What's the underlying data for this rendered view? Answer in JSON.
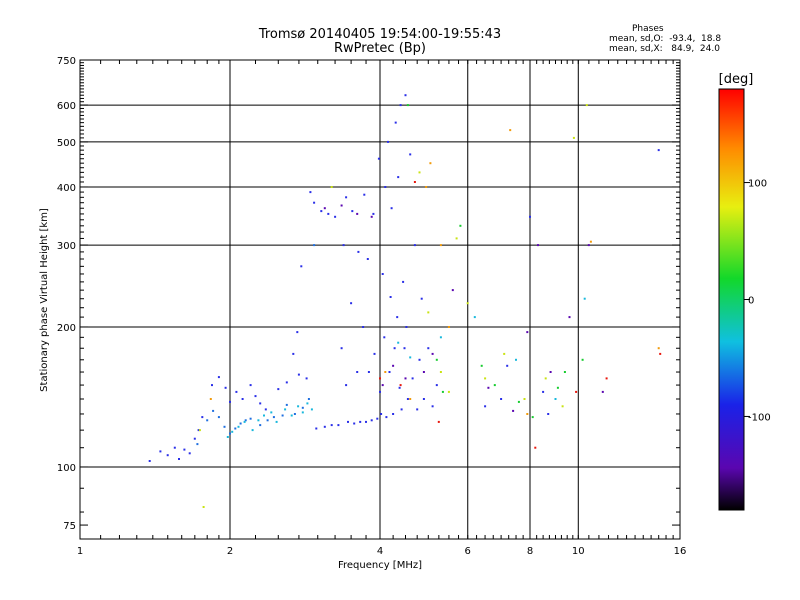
{
  "header": {
    "title_line1": "Tromsø 20140405 19:54:00-19:55:43",
    "title_line2": "RwPretec (Bp)",
    "stats_title": "Phases",
    "stats_o": "mean, sd,O:  -93.4,  18.8",
    "stats_x": "mean, sd,X:   84.9,  24.0"
  },
  "chart_data": {
    "type": "scatter",
    "title": "Tromsø 20140405 19:54:00-19:55:43",
    "subtitle": "RwPretec (Bp)",
    "xlabel": "Frequency [MHz]",
    "ylabel": "Stationary phase Virtual Height [km]",
    "x_scale": "log",
    "y_scale": "log",
    "xlim": [
      1,
      16
    ],
    "ylim": [
      70,
      750
    ],
    "x_ticks": [
      1,
      2,
      4,
      6,
      8,
      10,
      16
    ],
    "x_tick_labels": [
      "1",
      "2",
      "4",
      "6",
      "8",
      "10",
      "16"
    ],
    "x_gridlines": [
      2,
      4,
      6,
      8,
      10
    ],
    "y_ticks": [
      75,
      100,
      200,
      300,
      400,
      500,
      600,
      750
    ],
    "y_tick_labels": [
      "75",
      "100",
      "200",
      "300",
      "400",
      "500",
      "600",
      "750"
    ],
    "y_gridlines": [
      100,
      200,
      300,
      400,
      500,
      600
    ],
    "grid": true,
    "colorbar": {
      "label": "[deg]",
      "range": [
        -180,
        180
      ],
      "ticks": [
        100,
        0,
        -100
      ],
      "tick_labels": [
        "100",
        "0",
        "-100"
      ]
    },
    "series": [
      {
        "color": "#2a2fe8",
        "points": [
          [
            1.38,
            103
          ],
          [
            1.45,
            108
          ],
          [
            1.5,
            106
          ],
          [
            1.55,
            110
          ],
          [
            1.58,
            104
          ],
          [
            1.62,
            109
          ],
          [
            1.66,
            107
          ],
          [
            1.7,
            115
          ],
          [
            1.73,
            120
          ],
          [
            1.76,
            128
          ],
          [
            1.84,
            150
          ],
          [
            1.9,
            156
          ],
          [
            1.96,
            148
          ],
          [
            2.0,
            138
          ],
          [
            2.06,
            145
          ],
          [
            2.12,
            140
          ],
          [
            2.2,
            150
          ],
          [
            2.25,
            142
          ],
          [
            2.3,
            137
          ],
          [
            2.36,
            133
          ],
          [
            2.5,
            147
          ],
          [
            2.6,
            152
          ],
          [
            2.75,
            158
          ],
          [
            2.68,
            175
          ],
          [
            2.73,
            195
          ],
          [
            2.78,
            270
          ],
          [
            2.85,
            155
          ],
          [
            2.9,
            390
          ],
          [
            2.95,
            370
          ],
          [
            2.98,
            121
          ],
          [
            3.05,
            355
          ],
          [
            3.1,
            122
          ],
          [
            3.15,
            350
          ],
          [
            3.2,
            123
          ],
          [
            3.25,
            345
          ],
          [
            3.3,
            123
          ],
          [
            3.35,
            180
          ],
          [
            3.38,
            300
          ],
          [
            3.42,
            150
          ],
          [
            3.42,
            380
          ],
          [
            3.45,
            125
          ],
          [
            3.5,
            225
          ],
          [
            3.52,
            355
          ],
          [
            3.55,
            124
          ],
          [
            3.6,
            160
          ],
          [
            3.62,
            290
          ],
          [
            3.65,
            125
          ],
          [
            3.7,
            200
          ],
          [
            3.72,
            385
          ],
          [
            3.75,
            125
          ],
          [
            3.78,
            280
          ],
          [
            3.8,
            160
          ],
          [
            3.85,
            126
          ],
          [
            3.88,
            350
          ],
          [
            3.9,
            175
          ],
          [
            3.95,
            127
          ],
          [
            3.98,
            460
          ],
          [
            4.0,
            145
          ],
          [
            4.02,
            130
          ],
          [
            4.05,
            260
          ],
          [
            4.08,
            190
          ],
          [
            4.1,
            400
          ],
          [
            4.12,
            128
          ],
          [
            4.15,
            500
          ],
          [
            4.18,
            160
          ],
          [
            4.2,
            232
          ],
          [
            4.22,
            360
          ],
          [
            4.25,
            130
          ],
          [
            4.28,
            180
          ],
          [
            4.3,
            550
          ],
          [
            4.33,
            210
          ],
          [
            4.35,
            420
          ],
          [
            4.38,
            148
          ],
          [
            4.4,
            600
          ],
          [
            4.42,
            133
          ],
          [
            4.45,
            250
          ],
          [
            4.48,
            180
          ],
          [
            4.5,
            630
          ],
          [
            4.52,
            200
          ],
          [
            4.55,
            140
          ],
          [
            4.6,
            470
          ],
          [
            4.65,
            155
          ],
          [
            4.7,
            300
          ],
          [
            4.75,
            133
          ],
          [
            4.8,
            170
          ],
          [
            4.85,
            230
          ],
          [
            4.9,
            140
          ],
          [
            5.0,
            180
          ],
          [
            5.1,
            135
          ],
          [
            5.2,
            150
          ],
          [
            6.5,
            135
          ],
          [
            7.0,
            140
          ],
          [
            7.2,
            165
          ],
          [
            8.0,
            345
          ],
          [
            8.5,
            145
          ],
          [
            8.7,
            130
          ],
          [
            14.5,
            480
          ]
        ]
      },
      {
        "color": "#1f6fe0",
        "points": [
          [
            1.72,
            112
          ],
          [
            1.8,
            126
          ],
          [
            1.85,
            132
          ],
          [
            1.9,
            128
          ],
          [
            1.95,
            122
          ],
          [
            2.0,
            118
          ],
          [
            2.05,
            121
          ],
          [
            2.1,
            124
          ],
          [
            2.15,
            126
          ],
          [
            2.2,
            127
          ],
          [
            2.3,
            123
          ],
          [
            2.38,
            126
          ],
          [
            2.45,
            128
          ],
          [
            2.55,
            129
          ],
          [
            2.6,
            136
          ],
          [
            2.7,
            130
          ],
          [
            2.8,
            134
          ],
          [
            2.88,
            140
          ],
          [
            2.95,
            300
          ]
        ]
      },
      {
        "color": "#18b8dc",
        "points": [
          [
            1.98,
            116
          ],
          [
            2.02,
            119
          ],
          [
            2.08,
            122
          ],
          [
            2.14,
            125
          ],
          [
            2.22,
            120
          ],
          [
            2.28,
            126
          ],
          [
            2.34,
            129
          ],
          [
            2.42,
            131
          ],
          [
            2.48,
            125
          ],
          [
            2.58,
            133
          ],
          [
            2.66,
            129
          ],
          [
            2.74,
            135
          ],
          [
            2.8,
            131
          ],
          [
            2.86,
            137
          ],
          [
            2.92,
            133
          ],
          [
            4.35,
            185
          ],
          [
            4.6,
            172
          ],
          [
            5.3,
            190
          ],
          [
            6.2,
            210
          ],
          [
            7.5,
            170
          ],
          [
            9.0,
            140
          ],
          [
            10.3,
            230
          ]
        ]
      },
      {
        "color": "#5a06b0",
        "points": [
          [
            3.1,
            360
          ],
          [
            3.35,
            365
          ],
          [
            3.6,
            350
          ],
          [
            3.85,
            345
          ],
          [
            4.05,
            150
          ],
          [
            4.25,
            165
          ],
          [
            4.5,
            155
          ],
          [
            4.9,
            160
          ],
          [
            5.1,
            175
          ],
          [
            5.6,
            240
          ],
          [
            6.6,
            148
          ],
          [
            7.4,
            132
          ],
          [
            7.9,
            195
          ],
          [
            8.3,
            300
          ],
          [
            8.8,
            160
          ],
          [
            9.6,
            210
          ],
          [
            10.5,
            300
          ],
          [
            11.2,
            145
          ]
        ]
      },
      {
        "color": "#16cc2e",
        "points": [
          [
            4.55,
            600
          ],
          [
            5.2,
            170
          ],
          [
            5.35,
            145
          ],
          [
            5.8,
            330
          ],
          [
            6.4,
            165
          ],
          [
            6.8,
            150
          ],
          [
            7.6,
            138
          ],
          [
            8.1,
            128
          ],
          [
            9.1,
            148
          ],
          [
            9.4,
            160
          ],
          [
            10.2,
            170
          ]
        ]
      },
      {
        "color": "#c9e312",
        "points": [
          [
            1.74,
            120
          ],
          [
            1.77,
            82
          ],
          [
            3.2,
            400
          ],
          [
            4.8,
            430
          ],
          [
            5.0,
            215
          ],
          [
            5.3,
            160
          ],
          [
            5.5,
            145
          ],
          [
            5.7,
            310
          ],
          [
            6.0,
            225
          ],
          [
            6.5,
            155
          ],
          [
            7.1,
            175
          ],
          [
            7.8,
            140
          ],
          [
            8.6,
            155
          ],
          [
            9.3,
            135
          ],
          [
            9.8,
            510
          ],
          [
            10.4,
            600
          ]
        ]
      },
      {
        "color": "#f29b0b",
        "points": [
          [
            1.83,
            140
          ],
          [
            4.1,
            160
          ],
          [
            4.6,
            140
          ],
          [
            4.95,
            400
          ],
          [
            5.05,
            450
          ],
          [
            5.3,
            300
          ],
          [
            5.5,
            200
          ],
          [
            7.3,
            530
          ],
          [
            7.9,
            130
          ],
          [
            10.6,
            305
          ],
          [
            14.5,
            180
          ]
        ]
      },
      {
        "color": "#e8160c",
        "points": [
          [
            4.0,
            155
          ],
          [
            4.4,
            150
          ],
          [
            4.7,
            410
          ],
          [
            5.25,
            125
          ],
          [
            8.2,
            110
          ],
          [
            9.9,
            145
          ],
          [
            11.4,
            155
          ],
          [
            14.6,
            175
          ]
        ]
      }
    ]
  }
}
